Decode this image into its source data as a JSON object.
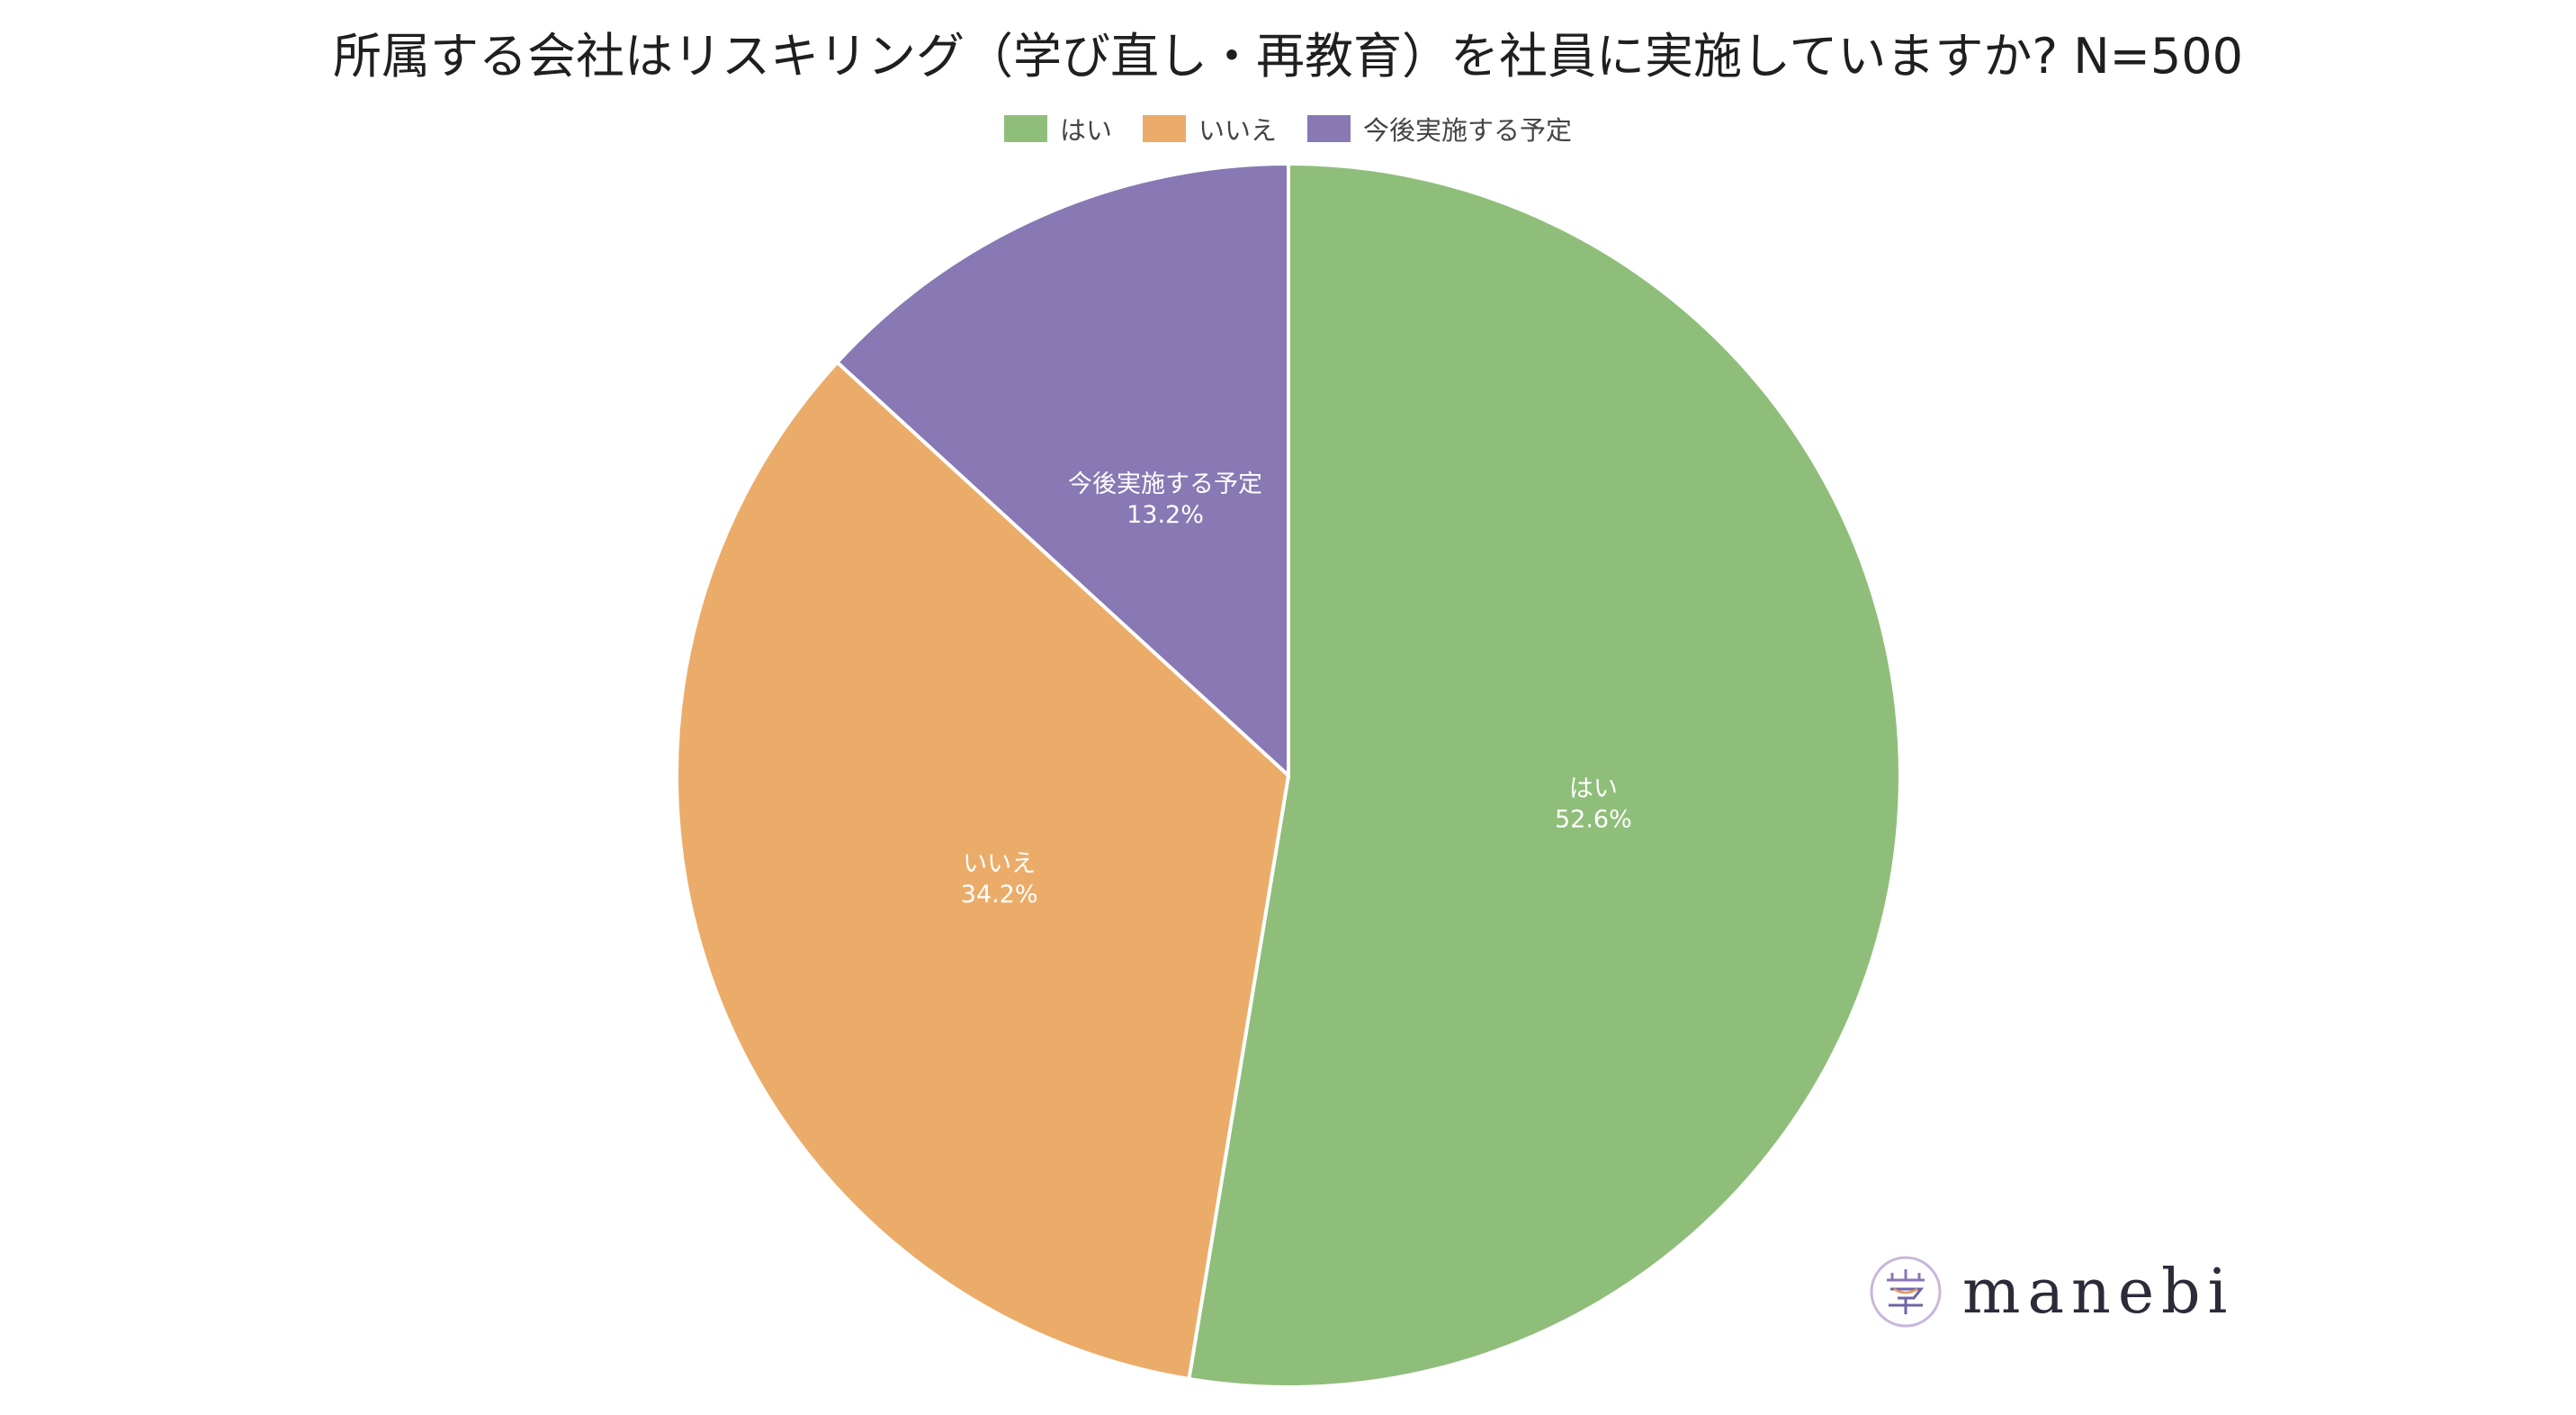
{
  "chart_data": {
    "type": "pie",
    "title": "所属する会社はリスキリング（学び直し・再教育）を社員に実施していますか? N=500",
    "categories": [
      "はい",
      "いいえ",
      "今後実施する予定"
    ],
    "values": [
      52.6,
      34.2,
      13.2
    ],
    "value_labels": [
      "52.6%",
      "34.2%",
      "13.2%"
    ],
    "colors": [
      "#8FBE7A",
      "#EBAC6A",
      "#8878B4"
    ],
    "legend_position": "top-center",
    "start": "12 o'clock",
    "direction": "clockwise"
  },
  "logo": {
    "text": "manebi"
  }
}
